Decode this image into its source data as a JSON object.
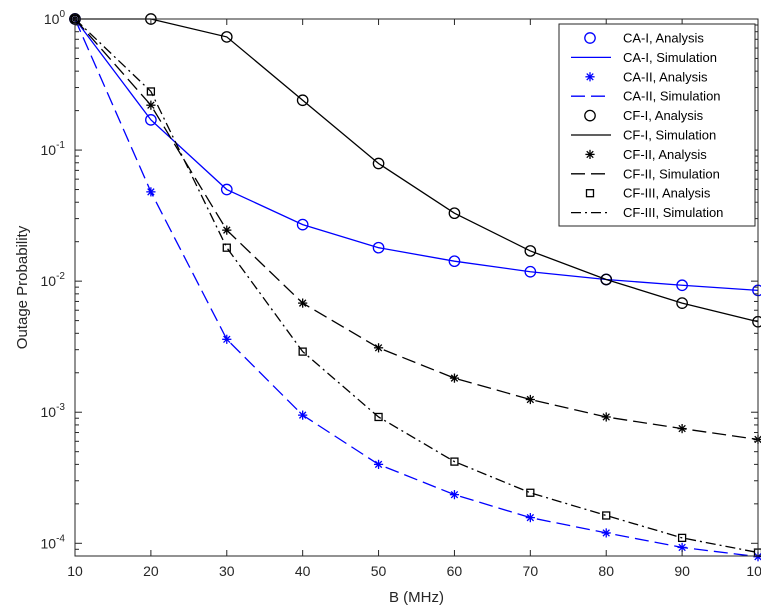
{
  "chart_data": {
    "type": "line",
    "xlabel": "B (MHz)",
    "ylabel": "Outage Probability",
    "yscale": "log",
    "xlim": [
      10,
      100
    ],
    "ylim": [
      8e-05,
      1
    ],
    "x_ticks": [
      "10",
      "20",
      "30",
      "40",
      "50",
      "60",
      "70",
      "80",
      "90",
      "100"
    ],
    "y_ticks": [
      {
        "value": 1,
        "base": "10",
        "exp": "0"
      },
      {
        "value": 0.1,
        "base": "10",
        "exp": "-1"
      },
      {
        "value": 0.01,
        "base": "10",
        "exp": "-2"
      },
      {
        "value": 0.001,
        "base": "10",
        "exp": "-3"
      },
      {
        "value": 0.0001,
        "base": "10",
        "exp": "-4"
      }
    ],
    "grid": false,
    "legend_position": "top-right",
    "x": [
      10,
      20,
      30,
      40,
      50,
      60,
      70,
      80,
      90,
      100
    ],
    "series": [
      {
        "name": "CA-I, Analysis",
        "color": "#0000ff",
        "line": "none",
        "marker": "circle",
        "values": [
          1,
          0.17,
          0.05,
          0.027,
          0.018,
          0.0142,
          0.0118,
          0.0103,
          0.0093,
          0.0085
        ]
      },
      {
        "name": "CA-I, Simulation",
        "color": "#0000ff",
        "line": "solid",
        "marker": "none",
        "values": [
          1,
          0.17,
          0.05,
          0.027,
          0.018,
          0.0142,
          0.0118,
          0.0103,
          0.0093,
          0.0085
        ]
      },
      {
        "name": "CA-II, Analysis",
        "color": "#0000ff",
        "line": "none",
        "marker": "asterisk",
        "values": [
          1,
          0.048,
          0.0036,
          0.00095,
          0.0004,
          0.000235,
          0.000157,
          0.00012,
          9.3e-05,
          7.9e-05
        ]
      },
      {
        "name": "CA-II, Simulation",
        "color": "#0000ff",
        "line": "dashed",
        "marker": "none",
        "values": [
          1,
          0.048,
          0.0036,
          0.00095,
          0.0004,
          0.000235,
          0.000157,
          0.00012,
          9.3e-05,
          7.9e-05
        ]
      },
      {
        "name": "CF-I, Analysis",
        "color": "#000000",
        "line": "none",
        "marker": "circle",
        "values": [
          1,
          1,
          0.73,
          0.24,
          0.079,
          0.033,
          0.017,
          0.0103,
          0.0068,
          0.0049
        ]
      },
      {
        "name": "CF-I, Simulation",
        "color": "#000000",
        "line": "solid",
        "marker": "none",
        "values": [
          1,
          1,
          0.73,
          0.24,
          0.079,
          0.033,
          0.017,
          0.0103,
          0.0068,
          0.0049
        ]
      },
      {
        "name": "CF-II, Analysis",
        "color": "#000000",
        "line": "none",
        "marker": "asterisk",
        "values": [
          1,
          0.22,
          0.0245,
          0.0068,
          0.0031,
          0.00182,
          0.00125,
          0.00092,
          0.00075,
          0.00062
        ]
      },
      {
        "name": "CF-II, Simulation",
        "color": "#000000",
        "line": "dashed",
        "marker": "none",
        "values": [
          1,
          0.22,
          0.0245,
          0.0068,
          0.0031,
          0.00182,
          0.00125,
          0.00092,
          0.00075,
          0.00062
        ]
      },
      {
        "name": "CF-III, Analysis",
        "color": "#000000",
        "line": "none",
        "marker": "square",
        "values": [
          1,
          0.28,
          0.018,
          0.0029,
          0.00092,
          0.00042,
          0.000243,
          0.000163,
          0.00011,
          8.5e-05
        ]
      },
      {
        "name": "CF-III, Simulation",
        "color": "#000000",
        "line": "dashdot",
        "marker": "none",
        "values": [
          1,
          0.28,
          0.018,
          0.0029,
          0.00092,
          0.00042,
          0.000243,
          0.000163,
          0.00011,
          8.5e-05
        ]
      }
    ]
  }
}
